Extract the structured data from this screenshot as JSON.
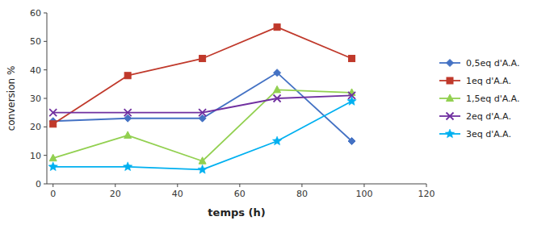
{
  "chart_data": {
    "type": "line",
    "xlabel": "temps (h)",
    "ylabel": "conversion %",
    "x": [
      0,
      24,
      48,
      72,
      96
    ],
    "series": [
      {
        "name": "0,5eq d'A.A.",
        "color": "#4472C4",
        "marker": "diamond",
        "values": [
          22,
          23,
          23,
          39,
          15
        ]
      },
      {
        "name": "1eq d'A.A.",
        "color": "#C0392B",
        "marker": "square",
        "values": [
          21,
          38,
          44,
          55,
          44
        ]
      },
      {
        "name": "1,5eq d'A.A.",
        "color": "#92D050",
        "marker": "triangle",
        "values": [
          9,
          17,
          8,
          33,
          32
        ]
      },
      {
        "name": "2eq d'A.A.",
        "color": "#7030A0",
        "marker": "x",
        "values": [
          25,
          25,
          25,
          30,
          31
        ]
      },
      {
        "name": "3eq d'A.A.",
        "color": "#00B0F0",
        "marker": "star",
        "values": [
          6,
          6,
          5,
          15,
          29
        ]
      }
    ],
    "xlim": [
      -2,
      120
    ],
    "ylim": [
      0,
      60
    ],
    "xticks": [
      0,
      20,
      40,
      60,
      80,
      100,
      120
    ],
    "yticks": [
      0,
      10,
      20,
      30,
      40,
      50,
      60
    ],
    "grid": false,
    "legend": "right"
  }
}
